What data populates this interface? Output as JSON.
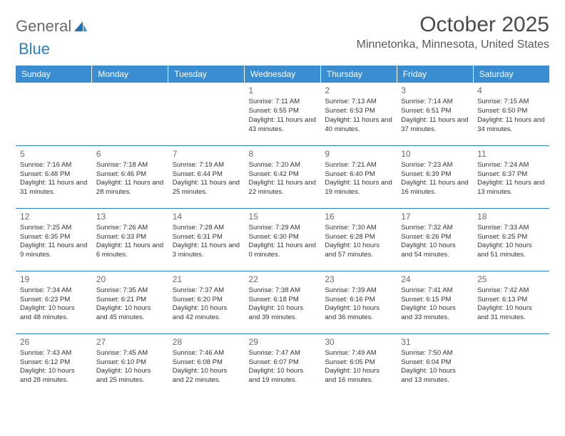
{
  "logo": {
    "text1": "General",
    "text2": "Blue"
  },
  "title": "October 2025",
  "location": "Minnetonka, Minnesota, United States",
  "colors": {
    "header_bg": "#3a8dd0",
    "header_text": "#ffffff",
    "border": "#2a7fc9",
    "text": "#333333",
    "daynum": "#6a6a6a",
    "logo_gray": "#6a6a6a",
    "logo_blue": "#2a7fc9",
    "background": "#ffffff"
  },
  "typography": {
    "title_fontsize": 30,
    "location_fontsize": 16,
    "header_fontsize": 12,
    "daynum_fontsize": 12,
    "cell_fontsize": 9.5
  },
  "day_names": [
    "Sunday",
    "Monday",
    "Tuesday",
    "Wednesday",
    "Thursday",
    "Friday",
    "Saturday"
  ],
  "weeks": [
    [
      null,
      null,
      null,
      {
        "n": "1",
        "sr": "7:11 AM",
        "ss": "6:55 PM",
        "dl": "11 hours and 43 minutes."
      },
      {
        "n": "2",
        "sr": "7:13 AM",
        "ss": "6:53 PM",
        "dl": "11 hours and 40 minutes."
      },
      {
        "n": "3",
        "sr": "7:14 AM",
        "ss": "6:51 PM",
        "dl": "11 hours and 37 minutes."
      },
      {
        "n": "4",
        "sr": "7:15 AM",
        "ss": "6:50 PM",
        "dl": "11 hours and 34 minutes."
      }
    ],
    [
      {
        "n": "5",
        "sr": "7:16 AM",
        "ss": "6:48 PM",
        "dl": "11 hours and 31 minutes."
      },
      {
        "n": "6",
        "sr": "7:18 AM",
        "ss": "6:46 PM",
        "dl": "11 hours and 28 minutes."
      },
      {
        "n": "7",
        "sr": "7:19 AM",
        "ss": "6:44 PM",
        "dl": "11 hours and 25 minutes."
      },
      {
        "n": "8",
        "sr": "7:20 AM",
        "ss": "6:42 PM",
        "dl": "11 hours and 22 minutes."
      },
      {
        "n": "9",
        "sr": "7:21 AM",
        "ss": "6:40 PM",
        "dl": "11 hours and 19 minutes."
      },
      {
        "n": "10",
        "sr": "7:23 AM",
        "ss": "6:39 PM",
        "dl": "11 hours and 16 minutes."
      },
      {
        "n": "11",
        "sr": "7:24 AM",
        "ss": "6:37 PM",
        "dl": "11 hours and 13 minutes."
      }
    ],
    [
      {
        "n": "12",
        "sr": "7:25 AM",
        "ss": "6:35 PM",
        "dl": "11 hours and 9 minutes."
      },
      {
        "n": "13",
        "sr": "7:26 AM",
        "ss": "6:33 PM",
        "dl": "11 hours and 6 minutes."
      },
      {
        "n": "14",
        "sr": "7:28 AM",
        "ss": "6:31 PM",
        "dl": "11 hours and 3 minutes."
      },
      {
        "n": "15",
        "sr": "7:29 AM",
        "ss": "6:30 PM",
        "dl": "11 hours and 0 minutes."
      },
      {
        "n": "16",
        "sr": "7:30 AM",
        "ss": "6:28 PM",
        "dl": "10 hours and 57 minutes."
      },
      {
        "n": "17",
        "sr": "7:32 AM",
        "ss": "6:26 PM",
        "dl": "10 hours and 54 minutes."
      },
      {
        "n": "18",
        "sr": "7:33 AM",
        "ss": "6:25 PM",
        "dl": "10 hours and 51 minutes."
      }
    ],
    [
      {
        "n": "19",
        "sr": "7:34 AM",
        "ss": "6:23 PM",
        "dl": "10 hours and 48 minutes."
      },
      {
        "n": "20",
        "sr": "7:35 AM",
        "ss": "6:21 PM",
        "dl": "10 hours and 45 minutes."
      },
      {
        "n": "21",
        "sr": "7:37 AM",
        "ss": "6:20 PM",
        "dl": "10 hours and 42 minutes."
      },
      {
        "n": "22",
        "sr": "7:38 AM",
        "ss": "6:18 PM",
        "dl": "10 hours and 39 minutes."
      },
      {
        "n": "23",
        "sr": "7:39 AM",
        "ss": "6:16 PM",
        "dl": "10 hours and 36 minutes."
      },
      {
        "n": "24",
        "sr": "7:41 AM",
        "ss": "6:15 PM",
        "dl": "10 hours and 33 minutes."
      },
      {
        "n": "25",
        "sr": "7:42 AM",
        "ss": "6:13 PM",
        "dl": "10 hours and 31 minutes."
      }
    ],
    [
      {
        "n": "26",
        "sr": "7:43 AM",
        "ss": "6:12 PM",
        "dl": "10 hours and 28 minutes."
      },
      {
        "n": "27",
        "sr": "7:45 AM",
        "ss": "6:10 PM",
        "dl": "10 hours and 25 minutes."
      },
      {
        "n": "28",
        "sr": "7:46 AM",
        "ss": "6:08 PM",
        "dl": "10 hours and 22 minutes."
      },
      {
        "n": "29",
        "sr": "7:47 AM",
        "ss": "6:07 PM",
        "dl": "10 hours and 19 minutes."
      },
      {
        "n": "30",
        "sr": "7:49 AM",
        "ss": "6:05 PM",
        "dl": "10 hours and 16 minutes."
      },
      {
        "n": "31",
        "sr": "7:50 AM",
        "ss": "6:04 PM",
        "dl": "10 hours and 13 minutes."
      },
      null
    ]
  ],
  "labels": {
    "sunrise": "Sunrise: ",
    "sunset": "Sunset: ",
    "daylight": "Daylight: "
  }
}
